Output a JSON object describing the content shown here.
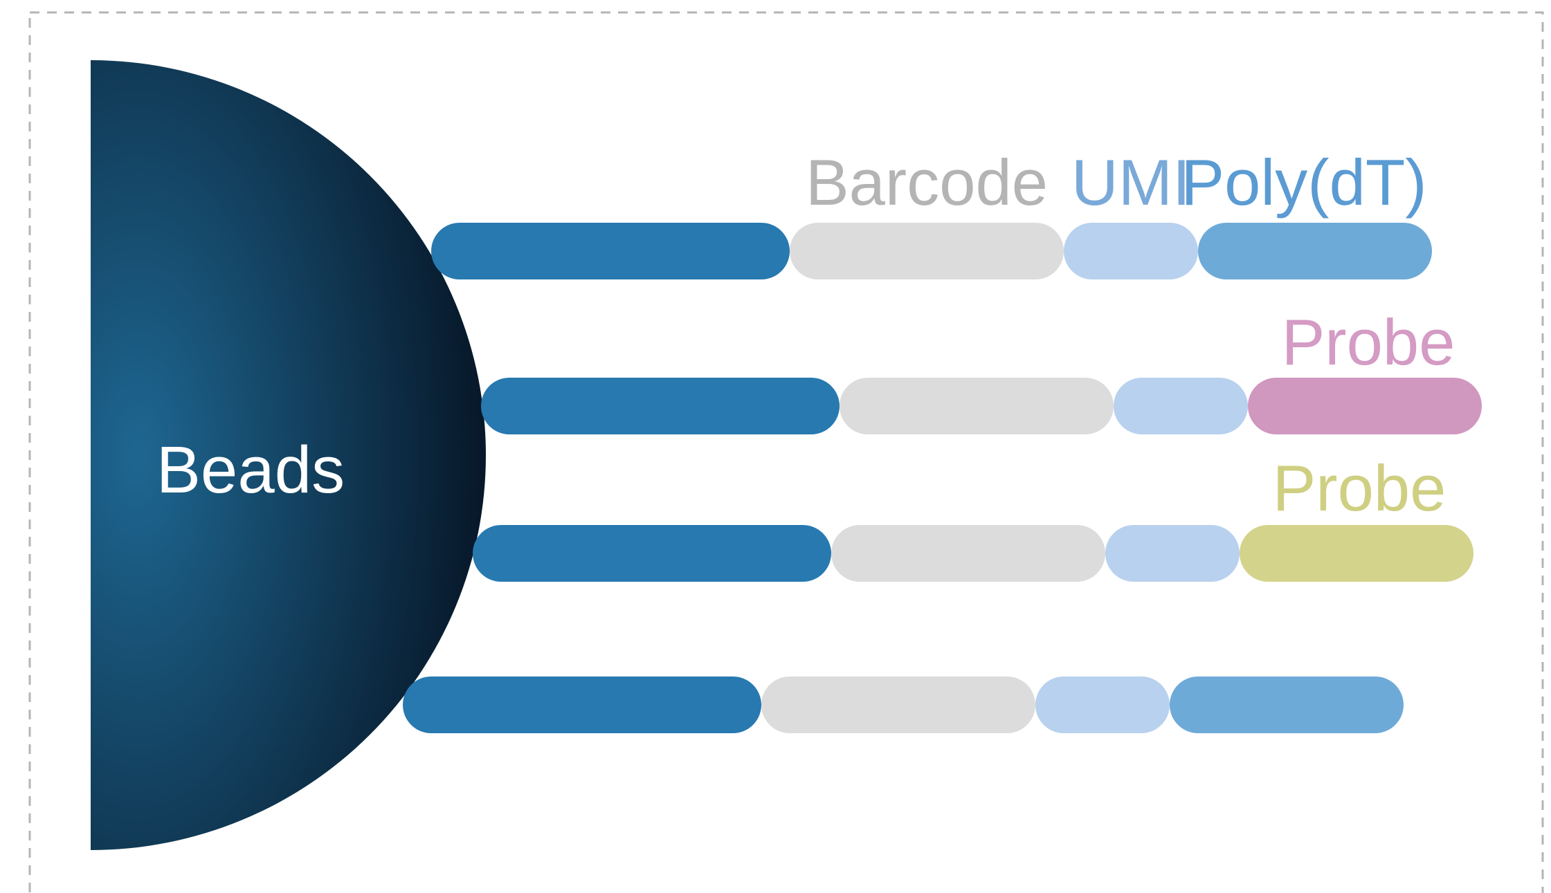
{
  "bead_label": "Beads",
  "labels": {
    "barcode": "Barcode",
    "umi": "UMI",
    "polydt": "Poly(dT)",
    "probe_pink": "Probe",
    "probe_yellow": "Probe"
  },
  "colors": {
    "frame": "#b4b4b4",
    "bead_center": "#1e6792",
    "bead_edge": "#051120",
    "linker": "#2779b0",
    "barcode": "#dcdcdc",
    "umi": "#b8d1ee",
    "polydt": "#6eaad8",
    "probe_pink": "#d097bf",
    "probe_yellow": "#d3d38b",
    "barcode_text": "#b4b4b4",
    "umi_text": "#7aa9d8",
    "polydt_text": "#5b9bd3",
    "probe_pink_text": "#d49bc4",
    "probe_yellow_text": "#cfcf82",
    "bead_text": "#ffffff"
  },
  "strands": [
    {
      "id": "strand-1",
      "segments": [
        "linker",
        "barcode",
        "umi",
        "polydt"
      ]
    },
    {
      "id": "strand-2",
      "segments": [
        "linker",
        "barcode",
        "umi",
        "probe_pink"
      ]
    },
    {
      "id": "strand-3",
      "segments": [
        "linker",
        "barcode",
        "umi",
        "probe_yellow"
      ]
    },
    {
      "id": "strand-4",
      "segments": [
        "linker",
        "barcode",
        "umi",
        "polydt"
      ]
    }
  ]
}
